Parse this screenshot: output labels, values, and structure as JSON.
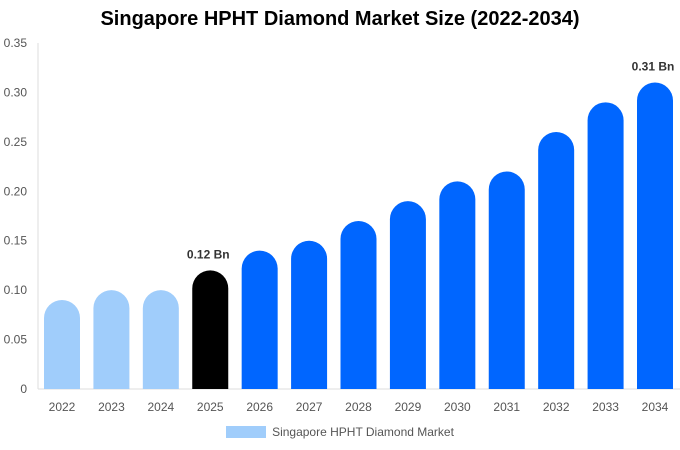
{
  "chart_data": {
    "type": "bar",
    "title": "Singapore HPHT Diamond Market Size (2022-2034)",
    "categories": [
      "2022",
      "2023",
      "2024",
      "2025",
      "2026",
      "2027",
      "2028",
      "2029",
      "2030",
      "2031",
      "2032",
      "2033",
      "2034"
    ],
    "series": [
      {
        "name": "Singapore HPHT Diamond Market",
        "values": [
          0.09,
          0.1,
          0.1,
          0.12,
          0.14,
          0.15,
          0.17,
          0.19,
          0.21,
          0.22,
          0.26,
          0.29,
          0.31
        ]
      }
    ],
    "bar_colors": [
      "#a0cdfb",
      "#a0cdfb",
      "#a0cdfb",
      "#000000",
      "#0066ff",
      "#0066ff",
      "#0066ff",
      "#0066ff",
      "#0066ff",
      "#0066ff",
      "#0066ff",
      "#0066ff",
      "#0066ff"
    ],
    "data_labels": [
      {
        "category": "2025",
        "text": "0.12 Bn"
      },
      {
        "category": "2034",
        "text": "0.31 Bn"
      }
    ],
    "yticks": [
      "0",
      "0.05",
      "0.10",
      "0.15",
      "0.20",
      "0.25",
      "0.30",
      "0.35"
    ],
    "ylim": [
      0,
      0.35
    ],
    "xlabel": "",
    "ylabel": "",
    "grid": false,
    "legend": "bottom",
    "legend_color": "#a0cdfb"
  }
}
